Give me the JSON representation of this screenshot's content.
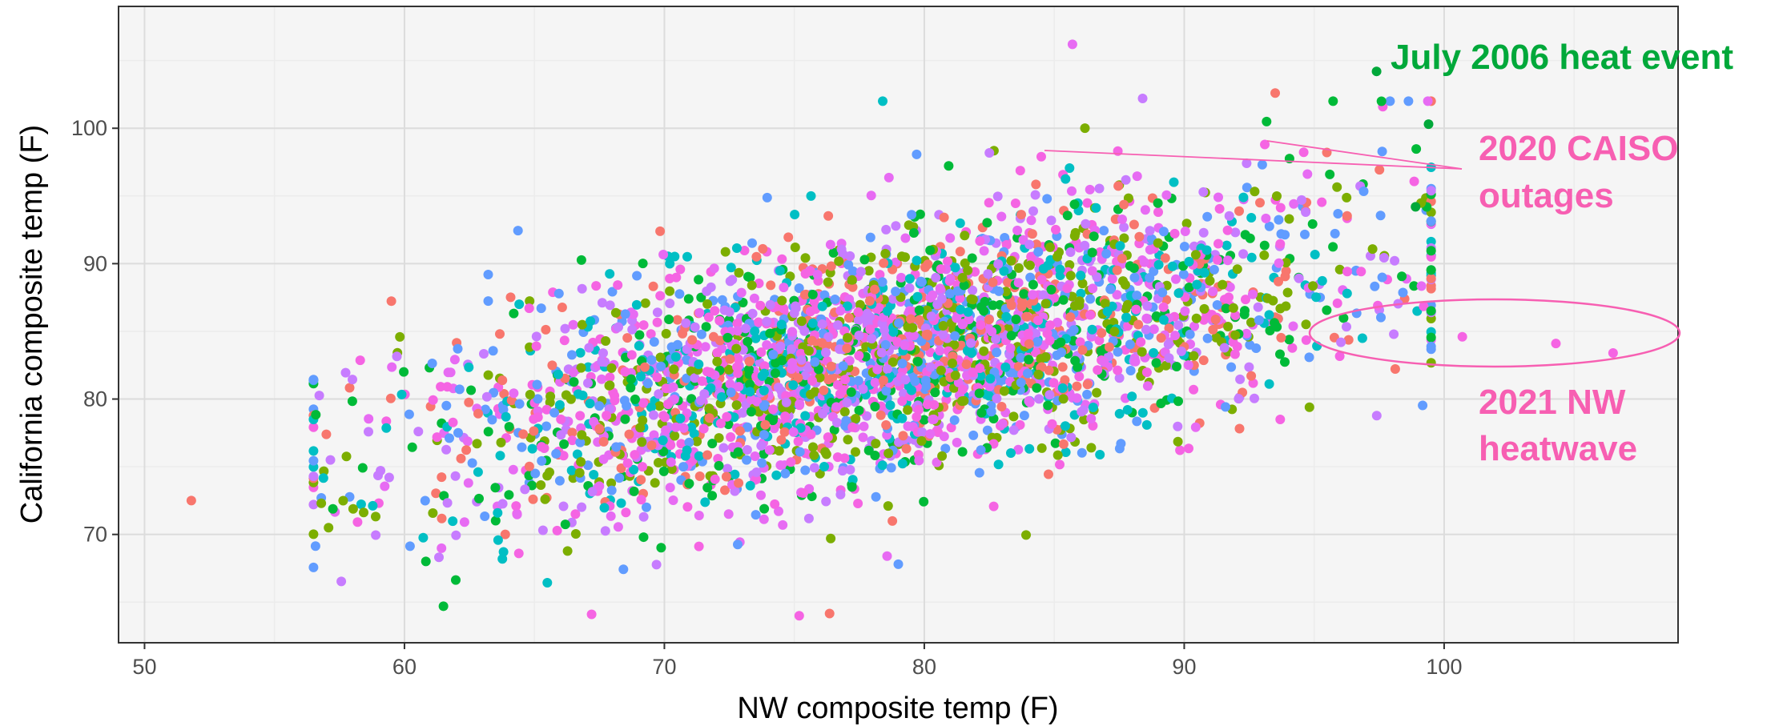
{
  "chart_data": {
    "type": "scatter",
    "xlabel": "NW composite temp (F)",
    "ylabel": "California composite temp (F)",
    "xlim": [
      49,
      109
    ],
    "ylim": [
      62,
      109
    ],
    "x_ticks": [
      50,
      60,
      70,
      80,
      90,
      100
    ],
    "y_ticks": [
      70,
      80,
      90,
      100
    ],
    "grid": true,
    "colors": [
      "#f8766d",
      "#00ba38",
      "#00bfc4",
      "#619cff",
      "#f564e3",
      "#c77cff",
      "#7cae00",
      "#e76bf3"
    ],
    "background": "#f5f5f5",
    "annotations": [
      {
        "text": "July 2006 heat event",
        "color": "#00a83a"
      },
      {
        "text": "2020 CAISO\noutages",
        "color": "#f75fb2"
      },
      {
        "text": "2021 NW\nheatwave",
        "color": "#f75fb2"
      }
    ],
    "highlighted_points": [
      {
        "label": "July 2006 heat event",
        "points": [
          [
            97.4,
            104.2
          ],
          [
            99.4,
            100.3
          ],
          [
            98.9,
            94.2
          ]
        ]
      },
      {
        "label": "2020 CAISO outages",
        "points": [
          [
            84.5,
            97.9
          ],
          [
            93.1,
            98.8
          ]
        ]
      },
      {
        "label": "2021 NW heatwave",
        "points": [
          [
            100.7,
            84.6
          ],
          [
            104.3,
            84.1
          ],
          [
            106.5,
            83.4
          ]
        ]
      }
    ],
    "outliers": [
      [
        51.8,
        72.5
      ],
      [
        56.8,
        72.7
      ],
      [
        56.8,
        72.3
      ],
      [
        61.5,
        64.7
      ],
      [
        67.2,
        64.1
      ],
      [
        85.7,
        106.2
      ],
      [
        78.4,
        102.0
      ],
      [
        88.4,
        102.2
      ],
      [
        93.5,
        102.6
      ],
      [
        79.0,
        67.8
      ],
      [
        76.4,
        69.7
      ],
      [
        69.2,
        69.8
      ],
      [
        64.4,
        68.6
      ]
    ],
    "cloud": {
      "n": 3200,
      "x_mean": 78.5,
      "x_sd": 8.8,
      "y_intercept": 53.5,
      "y_slope": 0.38,
      "y_sd": 4.6,
      "x_range": [
        56.5,
        99.5
      ],
      "y_range": [
        64,
        102
      ]
    }
  }
}
